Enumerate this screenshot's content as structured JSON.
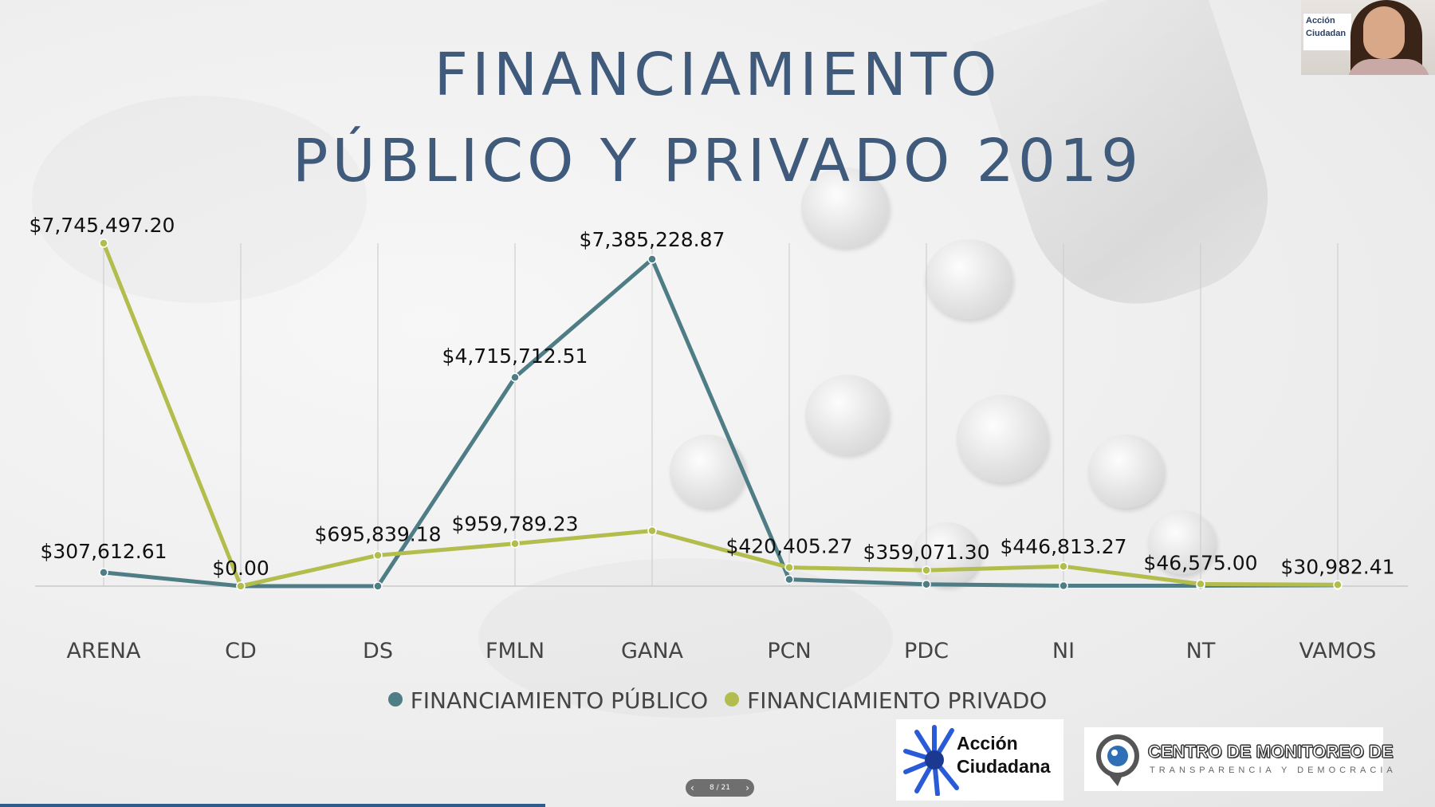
{
  "title": {
    "line1": "FINANCIAMIENTO",
    "line2": "PÚBLICO Y PRIVADO 2019"
  },
  "chart_data": {
    "type": "line",
    "categories": [
      "ARENA",
      "CD",
      "DS",
      "FMLN",
      "GANA",
      "PCN",
      "PDC",
      "NI",
      "NT",
      "VAMOS"
    ],
    "series": [
      {
        "name": "FINANCIAMIENTO PÚBLICO",
        "color": "#4e7d85",
        "values": [
          307612.61,
          0,
          0,
          4715712.51,
          7385228.87,
          150000,
          40000,
          10000,
          10000,
          20000
        ],
        "labels": [
          "$307,612.61",
          "$0.00",
          "",
          "$4,715,712.51",
          "$7,385,228.87",
          "",
          "",
          "",
          "",
          ""
        ]
      },
      {
        "name": "FINANCIAMIENTO PRIVADO",
        "color": "#b3bd4d",
        "values": [
          7745497.2,
          0,
          695839.18,
          959789.23,
          1250000,
          420405.27,
          359071.3,
          446813.27,
          46575.0,
          30982.41
        ],
        "labels": [
          "$7,745,497.20",
          "",
          "$695,839.18",
          "$959,789.23",
          "",
          "$420,405.27",
          "$359,071.30",
          "$446,813.27",
          "$46,575.00",
          "$30,982.41"
        ]
      }
    ],
    "ylim": [
      0,
      8200000
    ],
    "grid": "vertical",
    "legend_position": "bottom"
  },
  "logos": {
    "accion_line1": "Acción",
    "accion_line2": "Ciudadana",
    "centro_line1": "CENTRO DE MONITOREO DE",
    "centro_line2": "TRANSPARENCIA Y DEMOCRACIA"
  },
  "webcam": {
    "badge_line1": "Acción",
    "badge_line2": "Ciudadan"
  },
  "slide_nav": {
    "prev": "‹",
    "counter": "8 / 21",
    "next": "›"
  },
  "progress": 0.38
}
